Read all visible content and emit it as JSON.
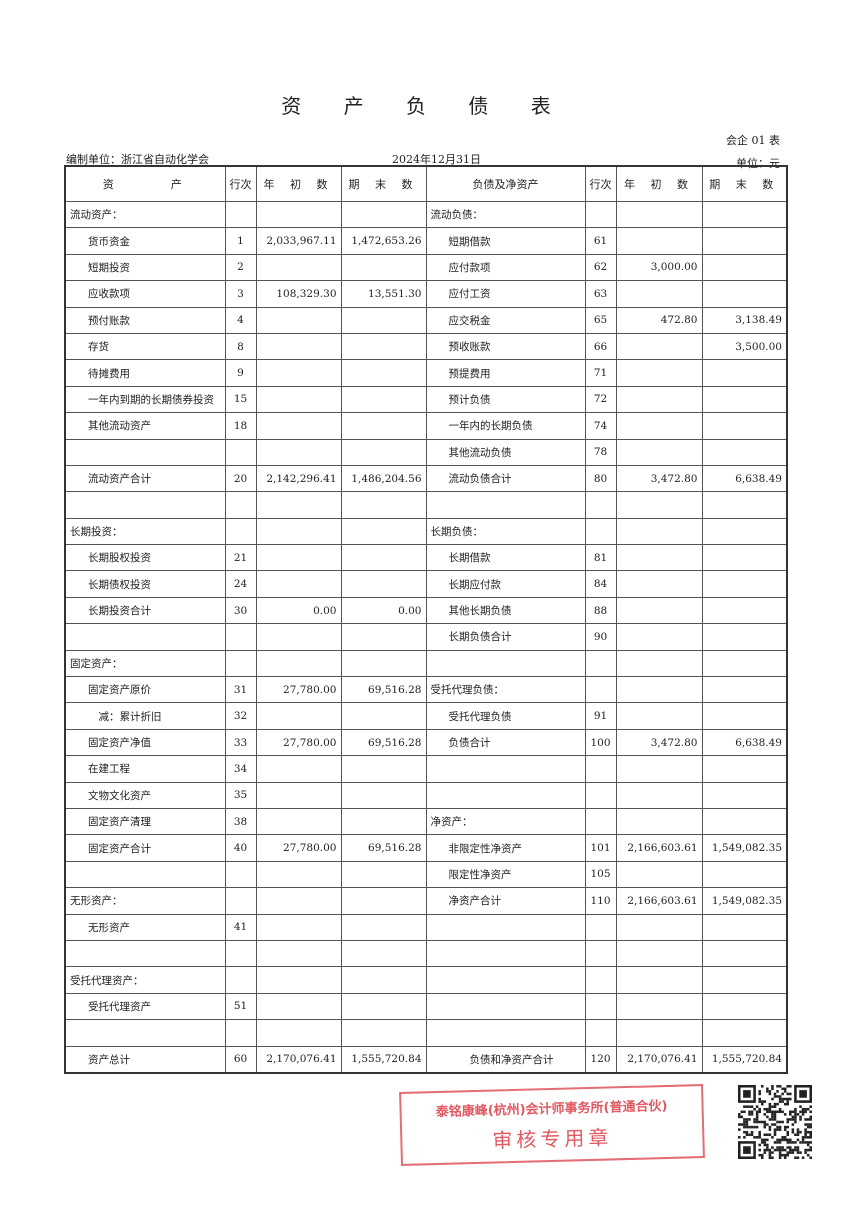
{
  "title": "资 产 负 债 表",
  "form_number": "会企 01 表",
  "organization": "编制单位：浙江省自动化学会",
  "date": "2024年12月31日",
  "unit": "单位：元",
  "headers": [
    "资　　　产",
    "行次",
    "年 初 数",
    "期 末 数",
    "负债及净资产",
    "行次",
    "年 初 数",
    "期 末 数"
  ],
  "rows": [
    {
      "l": [
        "流动资产：",
        "",
        "",
        ""
      ],
      "r": [
        "流动负债：",
        "",
        "",
        ""
      ]
    },
    {
      "l": [
        "货币资金",
        "1",
        "2,033,967.11",
        "1,472,653.26"
      ],
      "r": [
        "短期借款",
        "61",
        "",
        ""
      ]
    },
    {
      "l": [
        "短期投资",
        "2",
        "",
        ""
      ],
      "r": [
        "应付款项",
        "62",
        "3,000.00",
        ""
      ]
    },
    {
      "l": [
        "应收款项",
        "3",
        "108,329.30",
        "13,551.30"
      ],
      "r": [
        "应付工资",
        "63",
        "",
        ""
      ]
    },
    {
      "l": [
        "预付账款",
        "4",
        "",
        ""
      ],
      "r": [
        "应交税金",
        "65",
        "472.80",
        "3,138.49"
      ]
    },
    {
      "l": [
        "存货",
        "8",
        "",
        ""
      ],
      "r": [
        "预收账款",
        "66",
        "",
        "3,500.00"
      ]
    },
    {
      "l": [
        "待摊费用",
        "9",
        "",
        ""
      ],
      "r": [
        "预提费用",
        "71",
        "",
        ""
      ]
    },
    {
      "l": [
        "一年内到期的长期债券投资",
        "15",
        "",
        ""
      ],
      "r": [
        "预计负债",
        "72",
        "",
        ""
      ]
    },
    {
      "l": [
        "其他流动资产",
        "18",
        "",
        ""
      ],
      "r": [
        "一年内的长期负债",
        "74",
        "",
        ""
      ]
    },
    {
      "l": [
        "",
        "",
        "",
        ""
      ],
      "r": [
        "其他流动负债",
        "78",
        "",
        ""
      ]
    },
    {
      "l": [
        "流动资产合计",
        "20",
        "2,142,296.41",
        "1,486,204.56"
      ],
      "r": [
        "流动负债合计",
        "80",
        "3,472.80",
        "6,638.49"
      ]
    },
    {
      "l": [
        "",
        "",
        "",
        ""
      ],
      "r": [
        "",
        "",
        "",
        ""
      ]
    },
    {
      "l": [
        "长期投资：",
        "",
        "",
        ""
      ],
      "r": [
        "长期负债：",
        "",
        "",
        ""
      ]
    },
    {
      "l": [
        "长期股权投资",
        "21",
        "",
        ""
      ],
      "r": [
        "长期借款",
        "81",
        "",
        ""
      ]
    },
    {
      "l": [
        "长期债权投资",
        "24",
        "",
        ""
      ],
      "r": [
        "长期应付款",
        "84",
        "",
        ""
      ]
    },
    {
      "l": [
        "长期投资合计",
        "30",
        "0.00",
        "0.00"
      ],
      "r": [
        "其他长期负债",
        "88",
        "",
        ""
      ]
    },
    {
      "l": [
        "",
        "",
        "",
        ""
      ],
      "r": [
        "长期负债合计",
        "90",
        "",
        ""
      ]
    },
    {
      "l": [
        "固定资产：",
        "",
        "",
        ""
      ],
      "r": [
        "",
        "",
        "",
        ""
      ]
    },
    {
      "l": [
        "固定资产原价",
        "31",
        "27,780.00",
        "69,516.28"
      ],
      "r": [
        "受托代理负债：",
        "",
        "",
        ""
      ]
    },
    {
      "l": [
        "　减：累计折旧",
        "32",
        "",
        ""
      ],
      "r": [
        "受托代理负债",
        "91",
        "",
        ""
      ]
    },
    {
      "l": [
        "固定资产净值",
        "33",
        "27,780.00",
        "69,516.28"
      ],
      "r": [
        "负债合计",
        "100",
        "3,472.80",
        "6,638.49"
      ]
    },
    {
      "l": [
        "在建工程",
        "34",
        "",
        ""
      ],
      "r": [
        "",
        "",
        "",
        ""
      ]
    },
    {
      "l": [
        "文物文化资产",
        "35",
        "",
        ""
      ],
      "r": [
        "",
        "",
        "",
        ""
      ]
    },
    {
      "l": [
        "固定资产清理",
        "38",
        "",
        ""
      ],
      "r": [
        "净资产：",
        "",
        "",
        ""
      ]
    },
    {
      "l": [
        "固定资产合计",
        "40",
        "27,780.00",
        "69,516.28"
      ],
      "r": [
        "非限定性净资产",
        "101",
        "2,166,603.61",
        "1,549,082.35"
      ]
    },
    {
      "l": [
        "",
        "",
        "",
        ""
      ],
      "r": [
        "限定性净资产",
        "105",
        "",
        ""
      ]
    },
    {
      "l": [
        "无形资产：",
        "",
        "",
        ""
      ],
      "r": [
        "净资产合计",
        "110",
        "2,166,603.61",
        "1,549,082.35"
      ]
    },
    {
      "l": [
        "无形资产",
        "41",
        "",
        ""
      ],
      "r": [
        "",
        "",
        "",
        ""
      ]
    },
    {
      "l": [
        "",
        "",
        "",
        ""
      ],
      "r": [
        "",
        "",
        "",
        ""
      ]
    },
    {
      "l": [
        "受托代理资产：",
        "",
        "",
        ""
      ],
      "r": [
        "",
        "",
        "",
        ""
      ]
    },
    {
      "l": [
        "受托代理资产",
        "51",
        "",
        ""
      ],
      "r": [
        "",
        "",
        "",
        ""
      ]
    },
    {
      "l": [
        "",
        "",
        "",
        ""
      ],
      "r": [
        "",
        "",
        "",
        ""
      ]
    },
    {
      "l": [
        "资产总计",
        "60",
        "2,170,076.41",
        "1,555,720.84"
      ],
      "r": [
        "　　负债和净资产合计",
        "120",
        "2,170,076.41",
        "1,555,720.84"
      ]
    }
  ],
  "stamp": {
    "line1": "泰铭康峰(杭州)会计师事务所(普通合伙)",
    "line2": "审核专用章",
    "color": "#dc3c46"
  }
}
